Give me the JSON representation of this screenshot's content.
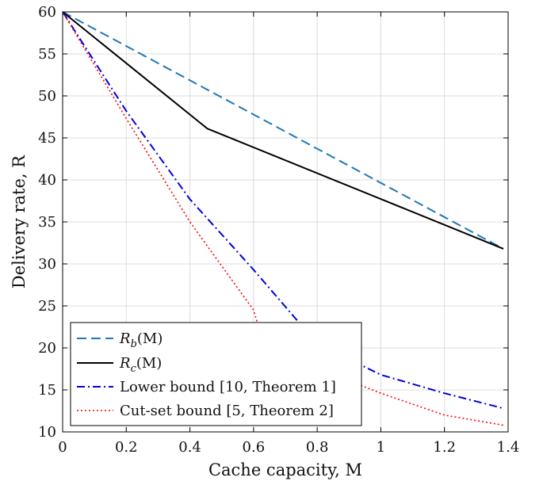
{
  "chart_data": {
    "type": "line",
    "title": "",
    "xlabel": "Cache capacity, M",
    "ylabel": "Delivery rate, R",
    "xlim": [
      0,
      1.4
    ],
    "ylim": [
      10,
      60
    ],
    "xticks": [
      0,
      0.2,
      0.4,
      0.6,
      0.8,
      1,
      1.2,
      1.4
    ],
    "yticks": [
      10,
      15,
      20,
      25,
      30,
      35,
      40,
      45,
      50,
      55,
      60
    ],
    "xtick_labels": [
      "0",
      "0.2",
      "0.4",
      "0.6",
      "0.8",
      "1",
      "1.2",
      "1.4"
    ],
    "ytick_labels": [
      "10",
      "15",
      "20",
      "25",
      "30",
      "35",
      "40",
      "45",
      "50",
      "55",
      "60"
    ],
    "grid": true,
    "legend_position": "bottom-left",
    "series": [
      {
        "name": "R_b(M)",
        "legend_parts": [
          "R",
          "b",
          "(M)"
        ],
        "color": "#1f77b4",
        "style": "dashed",
        "x": [
          0,
          1.385
        ],
        "y": [
          60,
          31.8
        ]
      },
      {
        "name": "R_c(M)",
        "legend_parts": [
          "R",
          "c",
          "(M)"
        ],
        "color": "#000000",
        "style": "solid",
        "x": [
          0,
          0.455,
          1.385
        ],
        "y": [
          60,
          46.1,
          31.8
        ]
      },
      {
        "name": "Lower bound [10, Theorem 1]",
        "legend_parts": [
          "Lower bound [10, Theorem 1]"
        ],
        "color": "#0000dd",
        "style": "dashdot",
        "x": [
          0,
          0.2,
          0.4,
          0.6,
          0.8,
          1.0,
          1.2,
          1.385
        ],
        "y": [
          60,
          48.2,
          37.7,
          29.3,
          20.5,
          16.8,
          14.6,
          12.8
        ]
      },
      {
        "name": "Cut-set bound [5, Theorem 2]",
        "legend_parts": [
          "Cut-set bound [5, Theorem 2]"
        ],
        "color": "#ff0000",
        "style": "dotted",
        "x": [
          0,
          0.2,
          0.4,
          0.6,
          0.62,
          0.8,
          1.0,
          1.2,
          1.385
        ],
        "y": [
          60,
          47.3,
          35.0,
          24.5,
          22.0,
          17.6,
          14.6,
          12.0,
          10.8
        ]
      }
    ]
  }
}
